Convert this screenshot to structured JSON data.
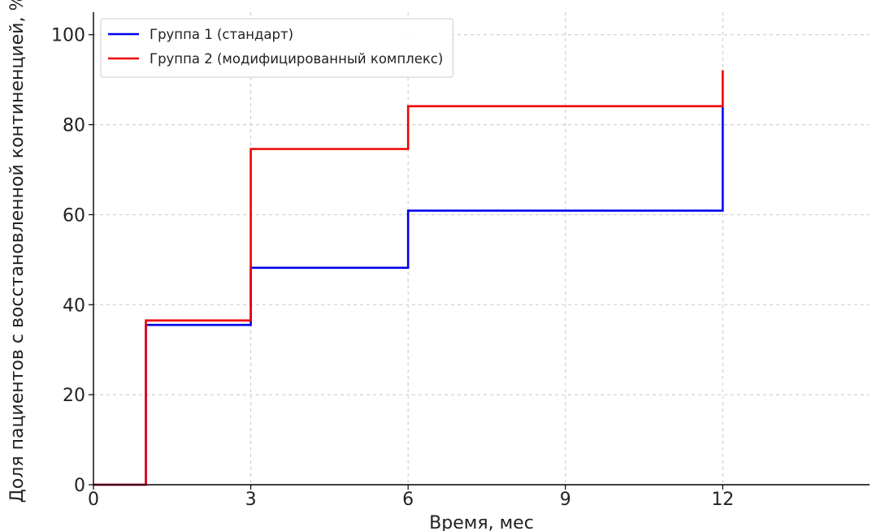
{
  "chart_data": {
    "type": "line",
    "step": true,
    "xlabel": "Время, мес",
    "ylabel": "Доля пациентов с восстановленной континенцией, %",
    "xlim": [
      0,
      14.8
    ],
    "ylim": [
      0,
      105
    ],
    "xticks": [
      0,
      3,
      6,
      9,
      12
    ],
    "yticks": [
      0,
      20,
      40,
      60,
      80,
      100
    ],
    "grid": true,
    "legend_position": "top-left",
    "series": [
      {
        "name": "Группа 1 (стандарт)",
        "color": "#0000ee",
        "x": [
          0,
          1,
          3,
          6,
          12
        ],
        "y": [
          0,
          35.5,
          48.2,
          60.9,
          84
        ]
      },
      {
        "name": "Группа 2 (модифицированный комплекс)",
        "color": "#ee0000",
        "x": [
          0,
          1,
          3,
          6,
          12
        ],
        "y": [
          0,
          36.5,
          74.6,
          84.1,
          92.1
        ]
      }
    ]
  }
}
